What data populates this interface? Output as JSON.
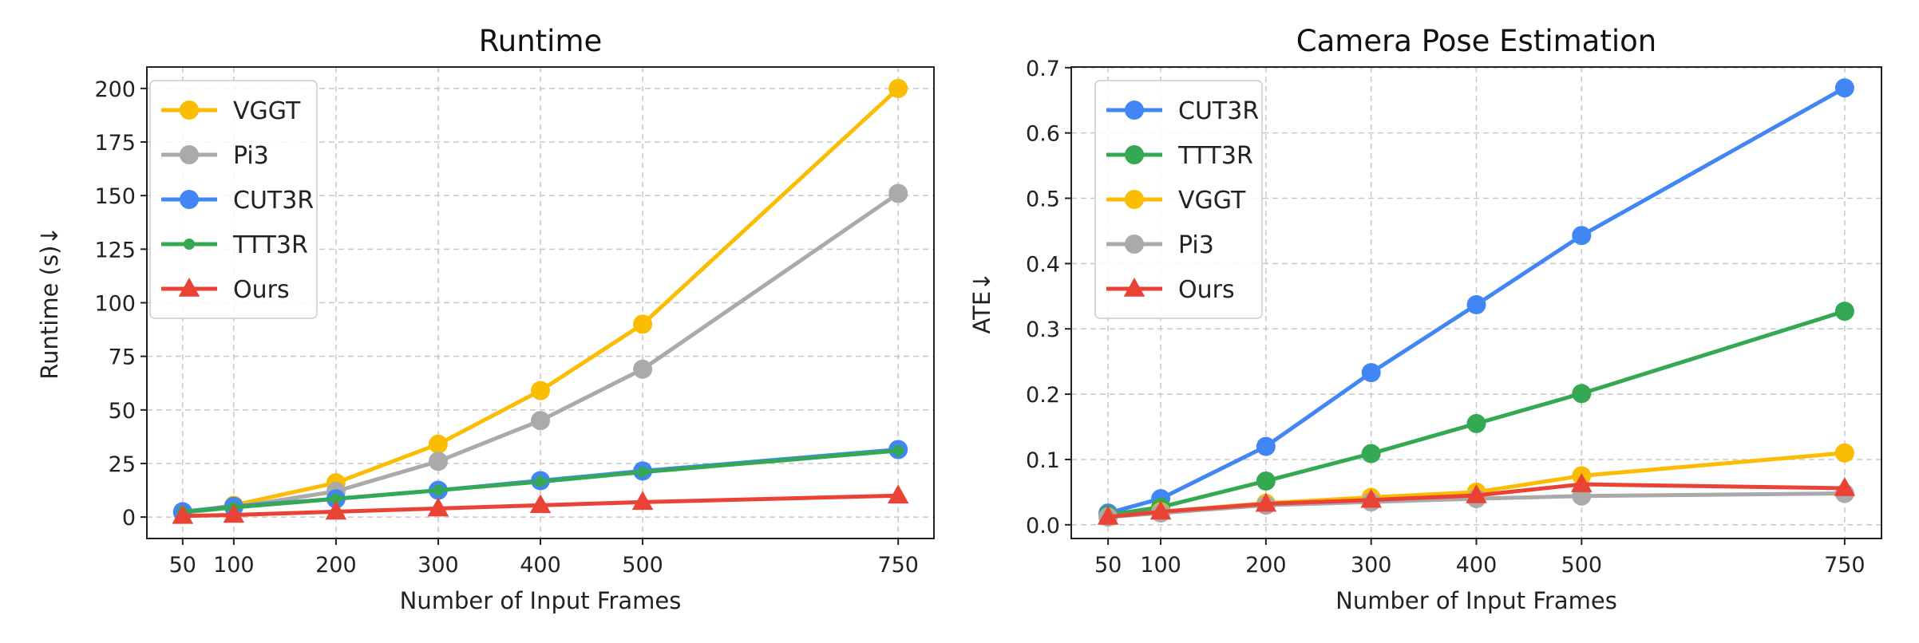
{
  "chart_data": [
    {
      "type": "line",
      "title": "Runtime",
      "xlabel": "Number of Input Frames",
      "ylabel": "Runtime (s)↓",
      "x": [
        50,
        100,
        200,
        300,
        400,
        500,
        750
      ],
      "xticks": [
        50,
        100,
        200,
        300,
        400,
        500,
        750
      ],
      "yticks": [
        0,
        25,
        50,
        75,
        100,
        125,
        150,
        175,
        200
      ],
      "xlim": [
        15,
        785
      ],
      "ylim": [
        -10,
        210
      ],
      "grid": true,
      "legend_position": "top-left",
      "series": [
        {
          "name": "VGGT",
          "color": "#FBBC04",
          "marker": "circle",
          "values": [
            2,
            5.5,
            16,
            34,
            59,
            90,
            200
          ]
        },
        {
          "name": "Pi3",
          "color": "#AAAAAA",
          "marker": "circle",
          "values": [
            2,
            4.5,
            12,
            26,
            45,
            69,
            151
          ]
        },
        {
          "name": "CUT3R",
          "color": "#4285F4",
          "marker": "circle",
          "values": [
            2.5,
            5,
            8.5,
            12.5,
            17,
            21.5,
            31.5
          ]
        },
        {
          "name": "TTT3R",
          "color": "#34A853",
          "marker": "small-circle",
          "values": [
            2.5,
            4.5,
            8.5,
            12.5,
            16.5,
            21,
            31
          ]
        },
        {
          "name": "Ours",
          "color": "#EA4335",
          "marker": "triangle",
          "values": [
            0.5,
            1,
            2.5,
            4,
            5.5,
            7,
            10
          ]
        }
      ]
    },
    {
      "type": "line",
      "title": "Camera Pose Estimation",
      "xlabel": "Number of Input Frames",
      "ylabel": "ATE↓",
      "x": [
        50,
        100,
        200,
        300,
        400,
        500,
        750
      ],
      "xticks": [
        50,
        100,
        200,
        300,
        400,
        500,
        750
      ],
      "yticks": [
        0.0,
        0.1,
        0.2,
        0.3,
        0.4,
        0.5,
        0.6,
        0.7
      ],
      "xlim": [
        15,
        785
      ],
      "ylim": [
        -0.021,
        0.701
      ],
      "grid": true,
      "legend_position": "top-left",
      "series": [
        {
          "name": "CUT3R",
          "color": "#4285F4",
          "marker": "circle",
          "values": [
            0.018,
            0.04,
            0.12,
            0.233,
            0.337,
            0.443,
            0.669
          ]
        },
        {
          "name": "TTT3R",
          "color": "#34A853",
          "marker": "circle",
          "values": [
            0.015,
            0.027,
            0.067,
            0.109,
            0.155,
            0.201,
            0.327
          ]
        },
        {
          "name": "VGGT",
          "color": "#FBBC04",
          "marker": "circle",
          "values": [
            0.012,
            0.02,
            0.033,
            0.042,
            0.05,
            0.075,
            0.11
          ]
        },
        {
          "name": "Pi3",
          "color": "#AAAAAA",
          "marker": "circle",
          "values": [
            0.012,
            0.018,
            0.03,
            0.035,
            0.04,
            0.044,
            0.048
          ]
        },
        {
          "name": "Ours",
          "color": "#EA4335",
          "marker": "triangle",
          "values": [
            0.012,
            0.02,
            0.032,
            0.038,
            0.045,
            0.062,
            0.056
          ]
        }
      ]
    }
  ]
}
